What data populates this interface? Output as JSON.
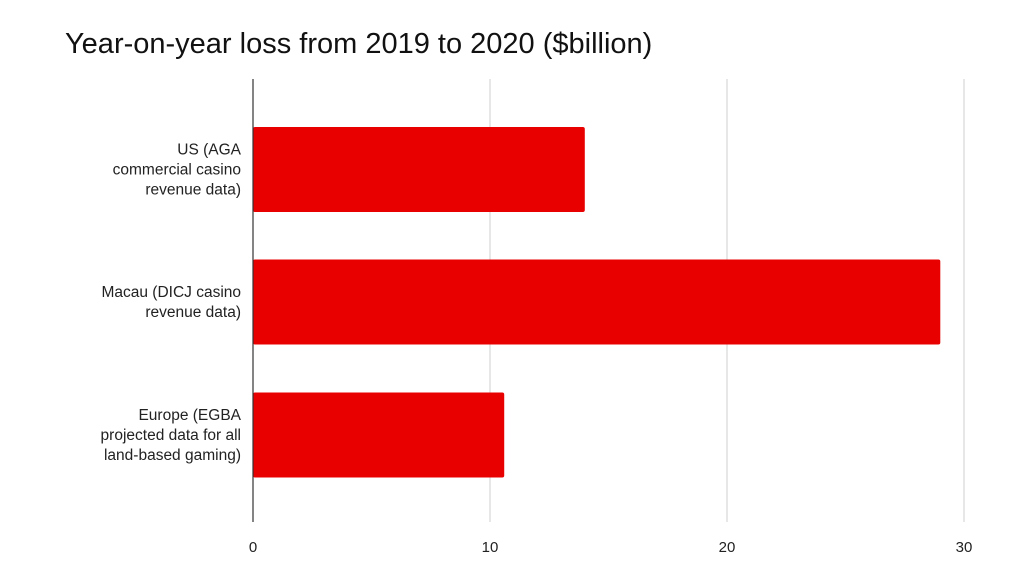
{
  "chart_data": {
    "type": "bar",
    "orientation": "horizontal",
    "title": "Year-on-year loss from 2019 to 2020 ($billion)",
    "xlabel": "",
    "ylabel": "",
    "categories": [
      [
        "US (AGA",
        "commercial casino",
        "revenue data)"
      ],
      [
        "Macau (DICJ casino",
        "revenue data)"
      ],
      [
        "Europe (EGBA",
        "projected data for all",
        "land-based gaming)"
      ]
    ],
    "values": [
      14.0,
      29.0,
      10.6
    ],
    "xlim": [
      0,
      30
    ],
    "xticks": [
      "0",
      "10",
      "20",
      "30"
    ],
    "grid": true,
    "legend": "none",
    "bar_color": "#e80000"
  }
}
